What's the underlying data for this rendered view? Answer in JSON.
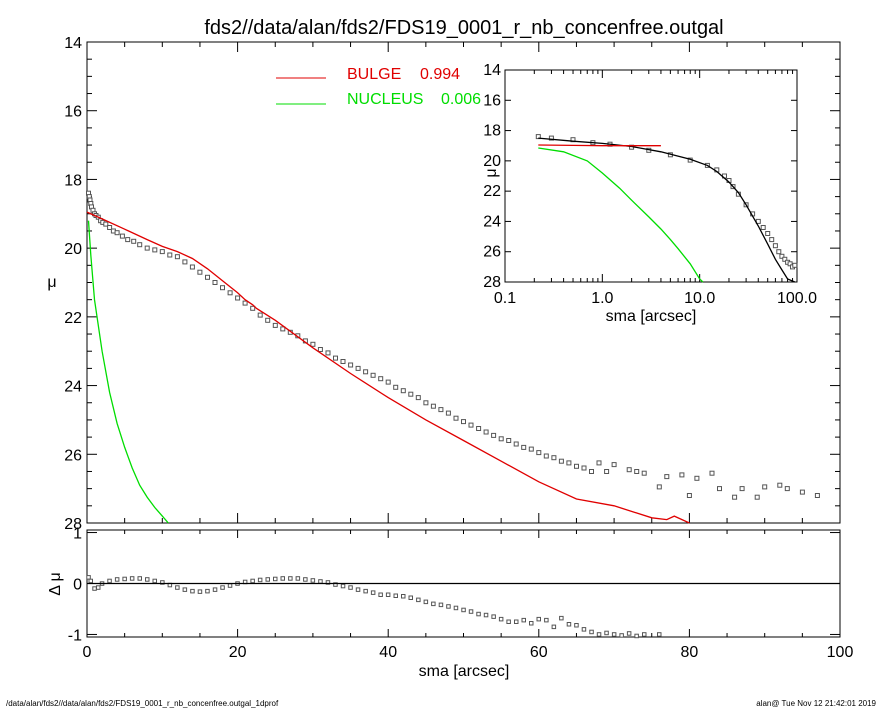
{
  "title": "fds2//data/alan/fds2/FDS19_0001_r_nb_concenfree.outgal",
  "footer_left": "/data/alan/fds2//data/alan/fds2/FDS19_0001_r_nb_concenfree.outgal_1dprof",
  "footer_right": "alan@  Tue Nov 12 21:42:01 2019",
  "colors": {
    "bulge": "#e00000",
    "nucleus": "#00dd00",
    "data": "#555555",
    "axis": "#000000"
  },
  "chart_data": [
    {
      "id": "main",
      "type": "scatter",
      "ylabel": "μ",
      "xlabel": "",
      "xlim": [
        0,
        100
      ],
      "ylim": [
        28,
        14
      ],
      "y_ticks": [
        "14",
        "16",
        "18",
        "20",
        "22",
        "24",
        "26",
        "28"
      ],
      "legend": [
        {
          "name": "BULGE",
          "value": "0.994",
          "color": "#e00000"
        },
        {
          "name": "NUCLEUS",
          "value": "0.006",
          "color": "#00dd00"
        }
      ],
      "legend_position": "top-center",
      "series": [
        {
          "name": "data",
          "style": "squares",
          "x": [
            0.2,
            0.3,
            0.4,
            0.5,
            0.6,
            0.8,
            1.0,
            1.2,
            1.5,
            1.8,
            2.1,
            2.5,
            3.0,
            3.5,
            4.0,
            4.7,
            5.4,
            6.2,
            7.0,
            8.0,
            9.0,
            10.0,
            11.0,
            12.0,
            13.0,
            14.0,
            15.0,
            16.0,
            17.0,
            18.0,
            19.0,
            20.0,
            21.0,
            22.0,
            23.0,
            24.0,
            25.0,
            26.0,
            27.0,
            28.0,
            29.0,
            30.0,
            31.0,
            32.0,
            33.0,
            34.0,
            35.0,
            36.0,
            37.0,
            38.0,
            39.0,
            40.0,
            41.0,
            42.0,
            43.0,
            44.0,
            45.0,
            46.0,
            47.0,
            48.0,
            49.0,
            50.0,
            51.0,
            52.0,
            53.0,
            54.0,
            55.0,
            56.0,
            57.0,
            58.0,
            59.0,
            60.0,
            61.0,
            62.0,
            63.0,
            64.0,
            65.0,
            66.0,
            67.0,
            68.0,
            69.0,
            70.0,
            72.0,
            73.0,
            74.0,
            76.0,
            77.0,
            79.0,
            80.0,
            81.0,
            83.0,
            84.0,
            86.0,
            87.0,
            89.0,
            90.0,
            92.0,
            93.0,
            95.0,
            97.0
          ],
          "y": [
            18.4,
            18.5,
            18.6,
            18.7,
            18.8,
            18.9,
            19.0,
            19.05,
            19.1,
            19.2,
            19.25,
            19.3,
            19.4,
            19.5,
            19.55,
            19.65,
            19.75,
            19.8,
            19.9,
            20.0,
            20.05,
            20.1,
            20.2,
            20.25,
            20.4,
            20.55,
            20.7,
            20.85,
            21.0,
            21.15,
            21.3,
            21.45,
            21.6,
            21.75,
            21.95,
            22.1,
            22.25,
            22.35,
            22.45,
            22.55,
            22.7,
            22.8,
            22.95,
            23.05,
            23.2,
            23.3,
            23.4,
            23.5,
            23.6,
            23.7,
            23.8,
            23.9,
            24.05,
            24.15,
            24.25,
            24.35,
            24.5,
            24.6,
            24.7,
            24.8,
            24.95,
            25.05,
            25.15,
            25.25,
            25.35,
            25.45,
            25.55,
            25.6,
            25.7,
            25.8,
            25.85,
            25.95,
            26.05,
            26.1,
            26.2,
            26.25,
            26.35,
            26.4,
            26.5,
            26.25,
            26.5,
            26.3,
            26.45,
            26.5,
            26.55,
            26.95,
            26.65,
            26.6,
            27.2,
            26.7,
            26.55,
            27.0,
            27.25,
            27.0,
            27.25,
            26.95,
            26.9,
            27.0,
            27.1,
            27.2
          ]
        },
        {
          "name": "BULGE",
          "style": "line",
          "color": "#e00000",
          "x": [
            0,
            2,
            5,
            8,
            10,
            12,
            14,
            16,
            18,
            20,
            21,
            22,
            22.5,
            25,
            30,
            35,
            40,
            45,
            50,
            55,
            60,
            65,
            70,
            75,
            77,
            78,
            80
          ],
          "y": [
            18.95,
            19.15,
            19.45,
            19.75,
            19.95,
            20.1,
            20.3,
            20.6,
            20.95,
            21.3,
            21.5,
            21.65,
            21.75,
            22.1,
            22.9,
            23.65,
            24.35,
            25.0,
            25.6,
            26.2,
            26.8,
            27.3,
            27.5,
            27.85,
            27.9,
            27.8,
            28.0
          ]
        },
        {
          "name": "NUCLEUS",
          "style": "line",
          "color": "#00dd00",
          "x": [
            0.2,
            0.5,
            1,
            2,
            3,
            4,
            5,
            6,
            7,
            8,
            9,
            10,
            10.8
          ],
          "y": [
            19.2,
            20.2,
            21.5,
            23.0,
            24.2,
            25.1,
            25.8,
            26.4,
            26.9,
            27.25,
            27.55,
            27.8,
            28.0
          ]
        }
      ]
    },
    {
      "id": "inset",
      "type": "scatter",
      "xscale": "log",
      "xlabel": "sma [arcsec]",
      "ylabel": "μ",
      "xlim": [
        0.1,
        100
      ],
      "ylim": [
        28,
        14
      ],
      "x_ticks": [
        "0.1",
        "1.0",
        "10.0",
        "100.0"
      ],
      "y_ticks": [
        "14",
        "16",
        "18",
        "20",
        "22",
        "24",
        "26",
        "28"
      ],
      "series": [
        {
          "name": "data",
          "style": "squares",
          "x": [
            0.22,
            0.3,
            0.5,
            0.8,
            1.2,
            2,
            3,
            5,
            8,
            12,
            15,
            18,
            20,
            22,
            25,
            30,
            35,
            40,
            45,
            50,
            55,
            60,
            65,
            70,
            75,
            80,
            85,
            90,
            95
          ],
          "y": [
            18.4,
            18.5,
            18.6,
            18.8,
            18.9,
            19.1,
            19.3,
            19.6,
            19.95,
            20.3,
            20.6,
            21.0,
            21.3,
            21.7,
            22.2,
            22.9,
            23.5,
            24.0,
            24.4,
            24.8,
            25.2,
            25.6,
            26.0,
            26.3,
            26.5,
            26.7,
            26.8,
            27.0,
            26.9
          ]
        },
        {
          "name": "model",
          "style": "line",
          "color": "#000000",
          "x": [
            0.22,
            0.5,
            1,
            2,
            4,
            8,
            12,
            15,
            20,
            25,
            30,
            40,
            50,
            60,
            70,
            80,
            95
          ],
          "y": [
            18.5,
            18.7,
            18.85,
            19.05,
            19.4,
            19.9,
            20.3,
            20.7,
            21.4,
            22.1,
            22.9,
            24.3,
            25.5,
            26.5,
            27.2,
            27.8,
            28.0
          ]
        },
        {
          "name": "BULGE",
          "style": "line",
          "color": "#e00000",
          "x": [
            0.22,
            0.5,
            1,
            2,
            4
          ],
          "y": [
            18.95,
            18.98,
            19.0,
            19.0,
            19.0
          ]
        },
        {
          "name": "NUCLEUS",
          "style": "line",
          "color": "#00dd00",
          "x": [
            0.22,
            0.4,
            0.7,
            1,
            1.5,
            2,
            3,
            4,
            5,
            6,
            8,
            10,
            10.8
          ],
          "y": [
            19.15,
            19.4,
            20.0,
            20.8,
            21.8,
            22.6,
            23.7,
            24.5,
            25.2,
            25.8,
            26.8,
            27.8,
            28.0
          ]
        }
      ]
    },
    {
      "id": "residual",
      "type": "scatter",
      "xlabel": "sma [arcsec]",
      "ylabel": "Δ μ",
      "xlim": [
        0,
        100
      ],
      "ylim": [
        -1.05,
        1.05
      ],
      "x_ticks": [
        "0",
        "20",
        "40",
        "60",
        "80",
        "100"
      ],
      "y_ticks": [
        "1",
        "0",
        "-1"
      ],
      "series": [
        {
          "name": "residual",
          "style": "squares",
          "x": [
            0.2,
            0.5,
            1,
            1.5,
            2,
            3,
            4,
            5,
            6,
            7,
            8,
            9,
            10,
            11,
            12,
            13,
            14,
            15,
            16,
            17,
            18,
            19,
            20,
            21,
            22,
            23,
            24,
            25,
            26,
            27,
            28,
            29,
            30,
            31,
            32,
            33,
            34,
            35,
            36,
            37,
            38,
            39,
            40,
            41,
            42,
            43,
            44,
            45,
            46,
            47,
            48,
            49,
            50,
            51,
            52,
            53,
            54,
            55,
            56,
            57,
            58,
            59,
            60,
            61,
            62,
            63,
            64,
            65,
            66,
            67,
            68,
            69,
            70,
            71,
            72,
            73,
            74,
            76
          ],
          "y": [
            0.12,
            0.05,
            -0.1,
            -0.08,
            0.0,
            0.05,
            0.08,
            0.09,
            0.1,
            0.1,
            0.08,
            0.05,
            0.02,
            -0.03,
            -0.08,
            -0.12,
            -0.15,
            -0.16,
            -0.15,
            -0.12,
            -0.08,
            -0.04,
            0.0,
            0.03,
            0.05,
            0.07,
            0.08,
            0.09,
            0.1,
            0.1,
            0.1,
            0.08,
            0.06,
            0.04,
            0.02,
            -0.02,
            -0.05,
            -0.08,
            -0.12,
            -0.15,
            -0.18,
            -0.22,
            -0.22,
            -0.24,
            -0.25,
            -0.28,
            -0.32,
            -0.36,
            -0.4,
            -0.42,
            -0.45,
            -0.48,
            -0.52,
            -0.55,
            -0.6,
            -0.62,
            -0.65,
            -0.7,
            -0.75,
            -0.75,
            -0.72,
            -0.78,
            -0.7,
            -0.72,
            -0.85,
            -0.68,
            -0.8,
            -0.82,
            -0.9,
            -0.95,
            -1.0,
            -0.97,
            -1.0,
            -1.02,
            -0.98,
            -1.03,
            -1.0,
            -1.0
          ]
        },
        {
          "name": "zero",
          "style": "line",
          "color": "#000000",
          "x": [
            0,
            100
          ],
          "y": [
            0,
            0
          ]
        }
      ]
    }
  ]
}
